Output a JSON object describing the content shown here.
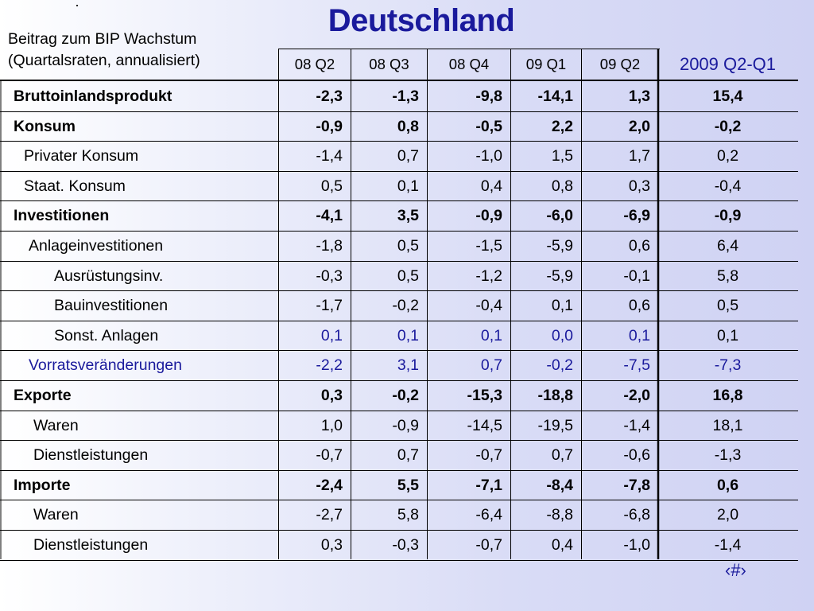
{
  "title": "Deutschland",
  "dot": "·",
  "caption": [
    "Beitrag zum BIP Wachstum",
    "(Quartalsraten, annualisiert)"
  ],
  "columns": [
    "08 Q2",
    "08 Q3",
    "08 Q4",
    "09 Q1",
    "09 Q2",
    "2009 Q2-Q1"
  ],
  "rows": [
    {
      "label": "Bruttoinlandsprodukt",
      "indent": 0,
      "bold": true,
      "blue": false,
      "blue_nums": false,
      "values": [
        "-2,3",
        "-1,3",
        "-9,8",
        "-14,1",
        "1,3",
        "15,4"
      ]
    },
    {
      "label": "Konsum",
      "indent": 0,
      "bold": true,
      "blue": false,
      "blue_nums": false,
      "values": [
        "-0,9",
        "0,8",
        "-0,5",
        "2,2",
        "2,0",
        "-0,2"
      ]
    },
    {
      "label": "Privater Konsum",
      "indent": 1,
      "bold": false,
      "blue": false,
      "blue_nums": false,
      "values": [
        "-1,4",
        "0,7",
        "-1,0",
        "1,5",
        "1,7",
        "0,2"
      ]
    },
    {
      "label": "Staat. Konsum",
      "indent": 1,
      "bold": false,
      "blue": false,
      "blue_nums": false,
      "values": [
        "0,5",
        "0,1",
        "0,4",
        "0,8",
        "0,3",
        "-0,4"
      ]
    },
    {
      "label": "Investitionen",
      "indent": 0,
      "bold": true,
      "blue": false,
      "blue_nums": false,
      "values": [
        "-4,1",
        "3,5",
        "-0,9",
        "-6,0",
        "-6,9",
        "-0,9"
      ]
    },
    {
      "label": "Anlageinvestitionen",
      "indent": 2,
      "bold": false,
      "blue": false,
      "blue_nums": false,
      "values": [
        "-1,8",
        "0,5",
        "-1,5",
        "-5,9",
        "0,6",
        "6,4"
      ]
    },
    {
      "label": "Ausrüstungsinv.",
      "indent": 4,
      "bold": false,
      "blue": false,
      "blue_nums": false,
      "values": [
        "-0,3",
        "0,5",
        "-1,2",
        "-5,9",
        "-0,1",
        "5,8"
      ]
    },
    {
      "label": "Bauinvestitionen",
      "indent": 4,
      "bold": false,
      "blue": false,
      "blue_nums": false,
      "values": [
        "-1,7",
        "-0,2",
        "-0,4",
        "0,1",
        "0,6",
        "0,5"
      ]
    },
    {
      "label": "Sonst. Anlagen",
      "indent": 4,
      "bold": false,
      "blue": false,
      "blue_nums": true,
      "values": [
        "0,1",
        "0,1",
        "0,1",
        "0,0",
        "0,1",
        "0,1"
      ]
    },
    {
      "label": "Vorratsveränderungen",
      "indent": 2,
      "bold": false,
      "blue": true,
      "blue_nums": true,
      "values": [
        "-2,2",
        "3,1",
        "0,7",
        "-0,2",
        "-7,5",
        "-7,3"
      ]
    },
    {
      "label": "Exporte",
      "indent": 0,
      "bold": true,
      "blue": false,
      "blue_nums": false,
      "values": [
        "0,3",
        "-0,2",
        "-15,3",
        "-18,8",
        "-2,0",
        "16,8"
      ]
    },
    {
      "label": "Waren",
      "indent": 3,
      "bold": false,
      "blue": false,
      "blue_nums": false,
      "values": [
        "1,0",
        "-0,9",
        "-14,5",
        "-19,5",
        "-1,4",
        "18,1"
      ]
    },
    {
      "label": "Dienstleistungen",
      "indent": 3,
      "bold": false,
      "blue": false,
      "blue_nums": false,
      "values": [
        "-0,7",
        "0,7",
        "-0,7",
        "0,7",
        "-0,6",
        "-1,3"
      ]
    },
    {
      "label": "Importe",
      "indent": 0,
      "bold": true,
      "blue": false,
      "blue_nums": false,
      "values": [
        "-2,4",
        "5,5",
        "-7,1",
        "-8,4",
        "-7,8",
        "0,6"
      ]
    },
    {
      "label": "Waren",
      "indent": 3,
      "bold": false,
      "blue": false,
      "blue_nums": false,
      "values": [
        "-2,7",
        "5,8",
        "-6,4",
        "-8,8",
        "-6,8",
        "2,0"
      ]
    },
    {
      "label": "Dienstleistungen",
      "indent": 3,
      "bold": false,
      "blue": false,
      "blue_nums": false,
      "values": [
        "0,3",
        "-0,3",
        "-0,7",
        "0,4",
        "-1,0",
        "-1,4"
      ]
    }
  ],
  "page_number": "‹#›",
  "colors": {
    "title": "#1a1a9c",
    "accent_blue": "#1a1a9c"
  }
}
